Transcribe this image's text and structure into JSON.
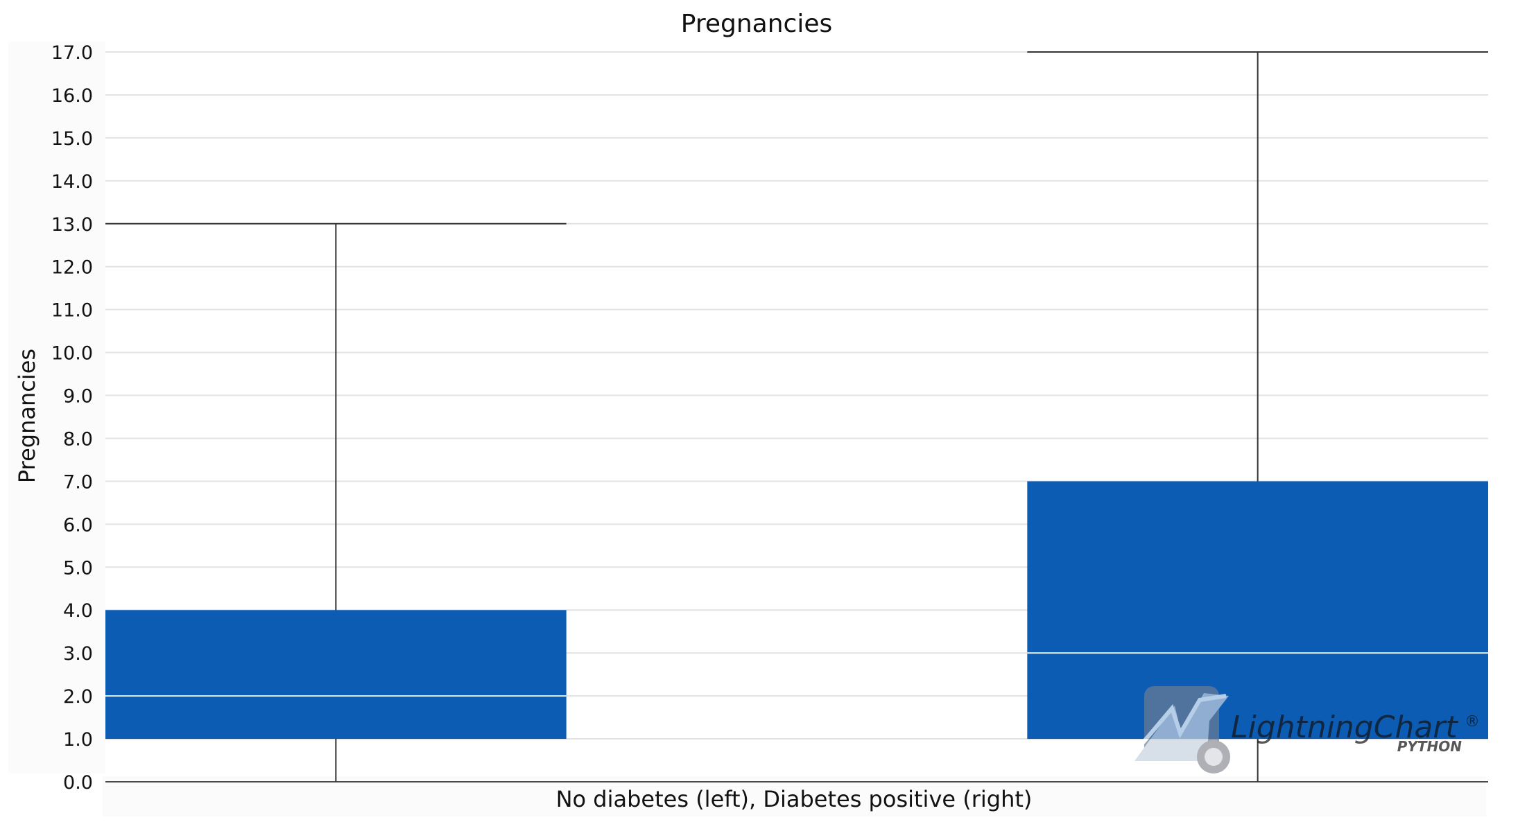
{
  "chart_data": {
    "type": "box",
    "title": "Pregnancies",
    "xlabel": "No diabetes (left), Diabetes positive (right)",
    "ylabel": "Pregnancies",
    "ylim": [
      0,
      17
    ],
    "y_ticks": [
      "0.0",
      "1.0",
      "2.0",
      "3.0",
      "4.0",
      "5.0",
      "6.0",
      "7.0",
      "8.0",
      "9.0",
      "10.0",
      "11.0",
      "12.0",
      "13.0",
      "14.0",
      "15.0",
      "16.0",
      "17.0"
    ],
    "grid": true,
    "box_color": "#0c5cb3",
    "series": [
      {
        "min": 0,
        "q1": 1,
        "median": 2,
        "q3": 4,
        "max": 13
      },
      {
        "min": 0,
        "q1": 1,
        "median": 3,
        "q3": 7,
        "max": 17
      }
    ]
  },
  "watermark": {
    "brand": "LightningChart",
    "registered": "®",
    "sub": "PYTHON",
    "icon": "lightningchart-logo-icon"
  }
}
